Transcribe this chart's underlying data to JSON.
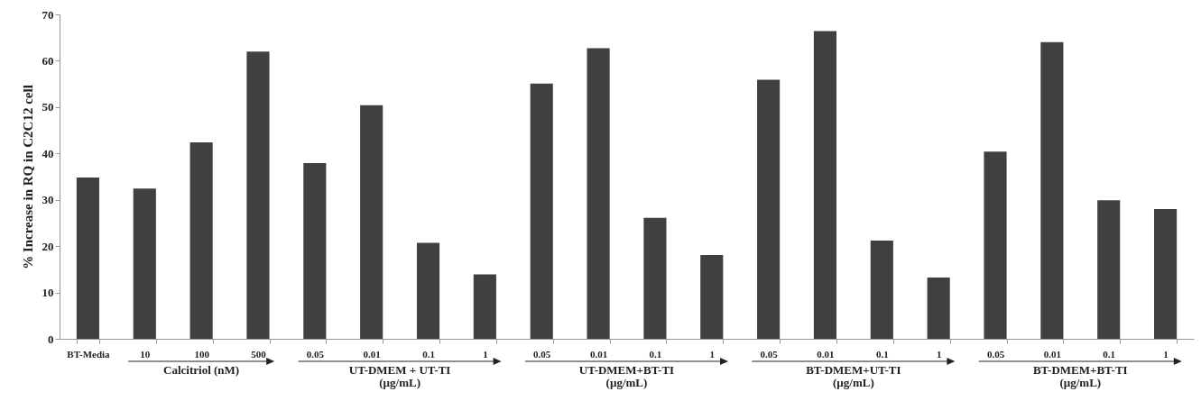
{
  "chart_data": {
    "type": "bar",
    "ylabel": "% Increase in RQ in C2C12 cell",
    "categories": [
      "BT-Media",
      "10",
      "100",
      "500",
      "0.05",
      "0.01",
      "0.1",
      "1",
      "0.05",
      "0.01",
      "0.1",
      "1",
      "0.05",
      "0.01",
      "0.1",
      "1",
      "0.05",
      "0.01",
      "0.1",
      "1"
    ],
    "values": [
      34.8,
      32.4,
      42.4,
      62,
      37.9,
      50.4,
      20.7,
      13.9,
      55.1,
      62.7,
      26.1,
      18.1,
      55.9,
      66.4,
      21.2,
      13.2,
      40.4,
      64,
      29.9,
      28
    ],
    "color": "#404040",
    "ylim": [
      0,
      70
    ],
    "yticks": [
      0,
      10,
      20,
      30,
      40,
      50,
      60,
      70
    ],
    "grid": false,
    "annotations": [
      "Calcitriol (nM)",
      "UT-DMEM + UT-TI\n(µg/mL)",
      "UT-DMEM+BT-TI\n(µg/mL)",
      "BT-DMEM+UT-TI\n(µg/mL)",
      "BT-DMEM+BT-TI\n(µg/mL)"
    ]
  }
}
